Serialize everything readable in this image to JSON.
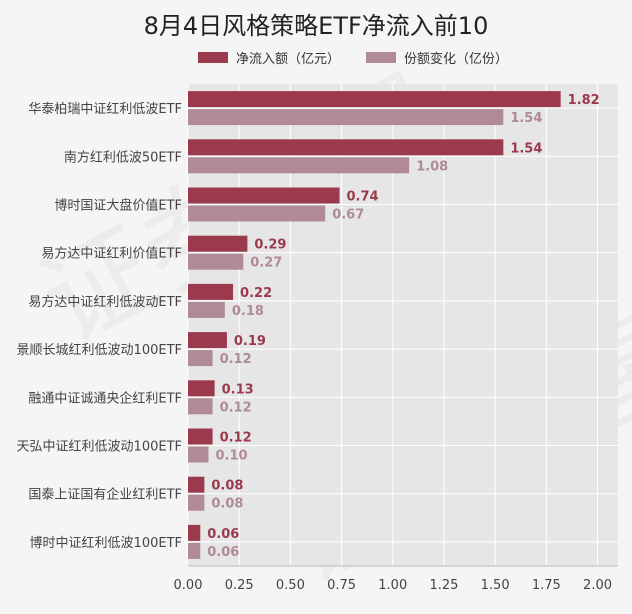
{
  "chart_data": {
    "type": "bar",
    "orientation": "horizontal",
    "title": "8月4日风格策略ETF净流入前10",
    "xlabel": "",
    "ylabel": "",
    "xlim": [
      0,
      2.1
    ],
    "x_ticks": [
      "0.00",
      "0.25",
      "0.50",
      "0.75",
      "1.00",
      "1.25",
      "1.50",
      "1.75",
      "2.00"
    ],
    "grid": true,
    "legend_position": "top",
    "categories": [
      "华泰柏瑞中证红利低波ETF",
      "南方红利低波50ETF",
      "博时国证大盘价值ETF",
      "易方达中证红利价值ETF",
      "易方达中证红利低波动ETF",
      "景顺长城红利低波动100ETF",
      "融通中证诚通央企红利ETF",
      "天弘中证红利低波动100ETF",
      "国泰上证国有企业红利ETF",
      "博时中证红利低波100ETF"
    ],
    "series": [
      {
        "name": "净流入额（亿元）",
        "color": "#9b3a4c",
        "values": [
          1.82,
          1.54,
          0.74,
          0.29,
          0.22,
          0.19,
          0.13,
          0.12,
          0.08,
          0.06
        ],
        "labels": [
          "1.82",
          "1.54",
          "0.74",
          "0.29",
          "0.22",
          "0.19",
          "0.13",
          "0.12",
          "0.08",
          "0.06"
        ]
      },
      {
        "name": "份额变化（亿份）",
        "color": "#b08a94",
        "values": [
          1.54,
          1.08,
          0.67,
          0.27,
          0.18,
          0.12,
          0.12,
          0.1,
          0.08,
          0.06
        ],
        "labels": [
          "1.54",
          "1.08",
          "0.67",
          "0.27",
          "0.18",
          "0.12",
          "0.12",
          "0.10",
          "0.08",
          "0.06"
        ]
      }
    ]
  }
}
